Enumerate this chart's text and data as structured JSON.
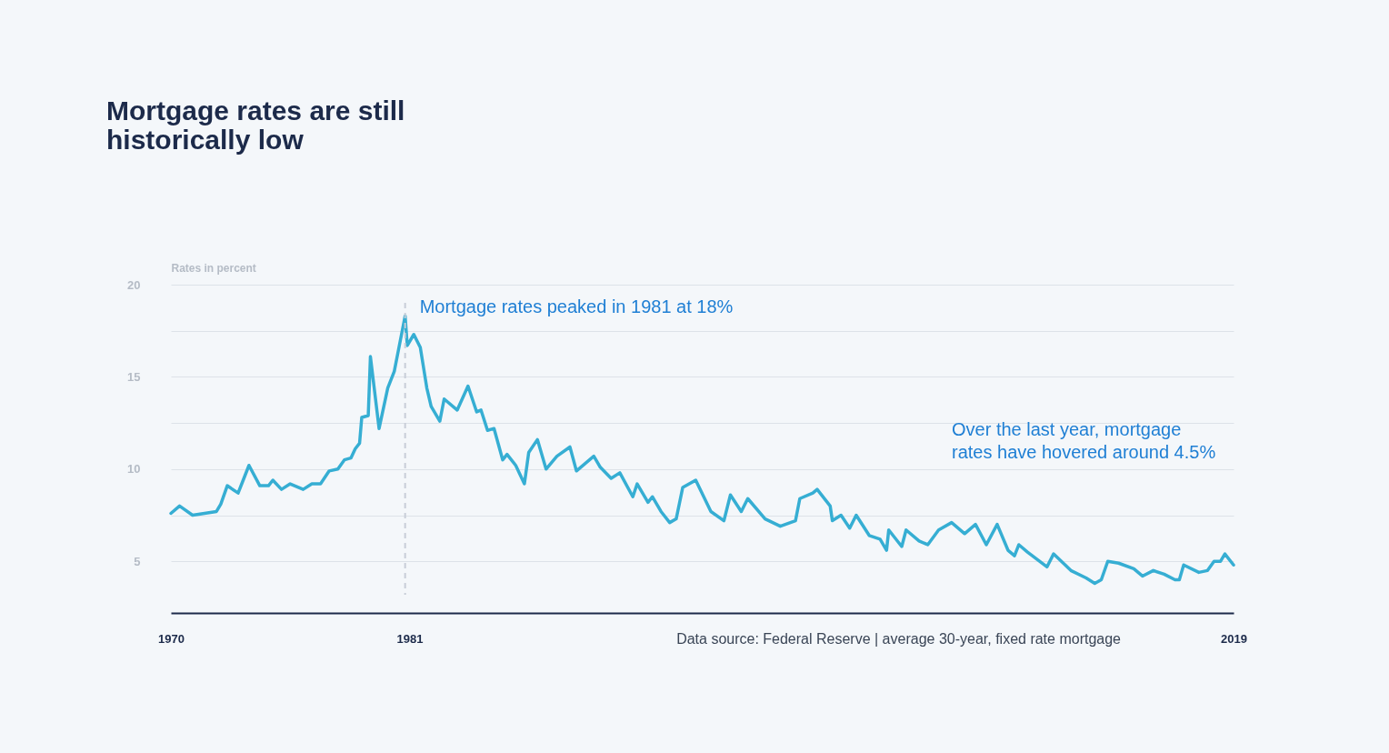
{
  "chart_data": {
    "type": "line",
    "title": "Mortgage rates are still\nhistorically low",
    "ylabel": "Rates in percent",
    "x": [
      1970.0,
      1970.4,
      1971.0,
      1972.1,
      1972.3,
      1972.6,
      1973.1,
      1973.3,
      1973.6,
      1974.1,
      1974.5,
      1974.7,
      1975.1,
      1975.5,
      1976.1,
      1976.5,
      1976.9,
      1977.3,
      1977.7,
      1978.0,
      1978.3,
      1978.5,
      1978.7,
      1978.8,
      1979.1,
      1979.2,
      1979.6,
      1980.0,
      1980.3,
      1980.5,
      1980.8,
      1980.9,
      1981.2,
      1981.5,
      1981.8,
      1982.0,
      1982.4,
      1982.6,
      1983.2,
      1983.7,
      1984.1,
      1984.3,
      1984.6,
      1984.9,
      1985.3,
      1985.5,
      1985.9,
      1986.3,
      1986.5,
      1986.9,
      1987.3,
      1987.8,
      1988.4,
      1988.7,
      1989.5,
      1989.8,
      1990.3,
      1990.7,
      1991.3,
      1991.5,
      1992.0,
      1992.2,
      1992.6,
      1993.0,
      1993.3,
      1993.6,
      1994.2,
      1994.9,
      1995.5,
      1995.8,
      1996.3,
      1996.6,
      1997.4,
      1998.1,
      1998.8,
      1999.0,
      1999.6,
      1999.8,
      2000.4,
      2000.5,
      2000.9,
      2001.3,
      2001.6,
      2002.2,
      2002.7,
      2003.0,
      2003.1,
      2003.7,
      2003.9,
      2004.5,
      2004.9,
      2005.4,
      2006.0,
      2006.6,
      2007.1,
      2007.6,
      2008.1,
      2008.6,
      2008.9,
      2009.1,
      2009.5,
      2010.4,
      2010.7,
      2011.5,
      2012.2,
      2012.6,
      2012.9,
      2013.2,
      2013.7,
      2014.4,
      2014.8,
      2015.3,
      2015.8,
      2016.3,
      2016.5,
      2016.7,
      2017.4,
      2017.8,
      2018.1,
      2018.4,
      2018.6,
      2019.0
    ],
    "series": [
      {
        "color": "#36aed3",
        "values": [
          7.6,
          8.0,
          7.5,
          7.7,
          8.1,
          9.1,
          8.7,
          9.3,
          10.2,
          9.1,
          9.1,
          9.4,
          8.9,
          9.2,
          8.9,
          9.2,
          9.2,
          9.9,
          10.0,
          10.5,
          10.6,
          11.1,
          11.4,
          12.8,
          12.9,
          16.1,
          12.2,
          14.4,
          15.3,
          16.5,
          18.3,
          16.7,
          17.3,
          16.6,
          14.4,
          13.4,
          12.6,
          13.8,
          13.2,
          14.5,
          13.1,
          13.2,
          12.1,
          12.2,
          10.5,
          10.8,
          10.2,
          9.2,
          10.9,
          11.6,
          10.0,
          10.7,
          11.2,
          9.9,
          10.7,
          10.1,
          9.5,
          9.8,
          8.5,
          9.2,
          8.2,
          8.5,
          7.7,
          7.1,
          7.3,
          9.0,
          9.4,
          7.7,
          7.2,
          8.6,
          7.7,
          8.4,
          7.3,
          6.9,
          7.2,
          8.4,
          8.7,
          8.9,
          8.0,
          7.2,
          7.5,
          6.8,
          7.5,
          6.4,
          6.2,
          5.6,
          6.7,
          5.8,
          6.7,
          6.1,
          5.9,
          6.7,
          7.1,
          6.5,
          7.0,
          5.9,
          7.0,
          5.6,
          5.3,
          5.9,
          5.5,
          4.7,
          5.4,
          4.5,
          4.1,
          3.8,
          4.0,
          5.0,
          4.9,
          4.6,
          4.2,
          4.5,
          4.3,
          4.0,
          4.0,
          4.8,
          4.4,
          4.5,
          5.0,
          5.0,
          5.4,
          4.8
        ]
      }
    ],
    "xlim": [
      1970,
      2019
    ],
    "xticks": [
      1970,
      1981,
      2019
    ],
    "ylim": [
      2.2,
      20
    ],
    "yticks": [
      5,
      {
        "value": 7.5,
        "label": null
      },
      10,
      {
        "value": 12.5,
        "label": null
      },
      15,
      {
        "value": 17.5,
        "label": null
      },
      20
    ],
    "grid": "y",
    "ref_lines": [
      {
        "axis": "x",
        "value": 1980.8,
        "color": "#c8ced8",
        "line_style": "dashed"
      }
    ],
    "annotations": [
      {
        "text": "Mortgage rates peaked in 1981 at 18%",
        "x": 1980.8,
        "y": 18.3
      },
      "Over the last year, mortgage\nrates have hovered around 4.5%",
      "Data source:  Federal Reserve | average 30-year, fixed rate mortgage"
    ]
  }
}
